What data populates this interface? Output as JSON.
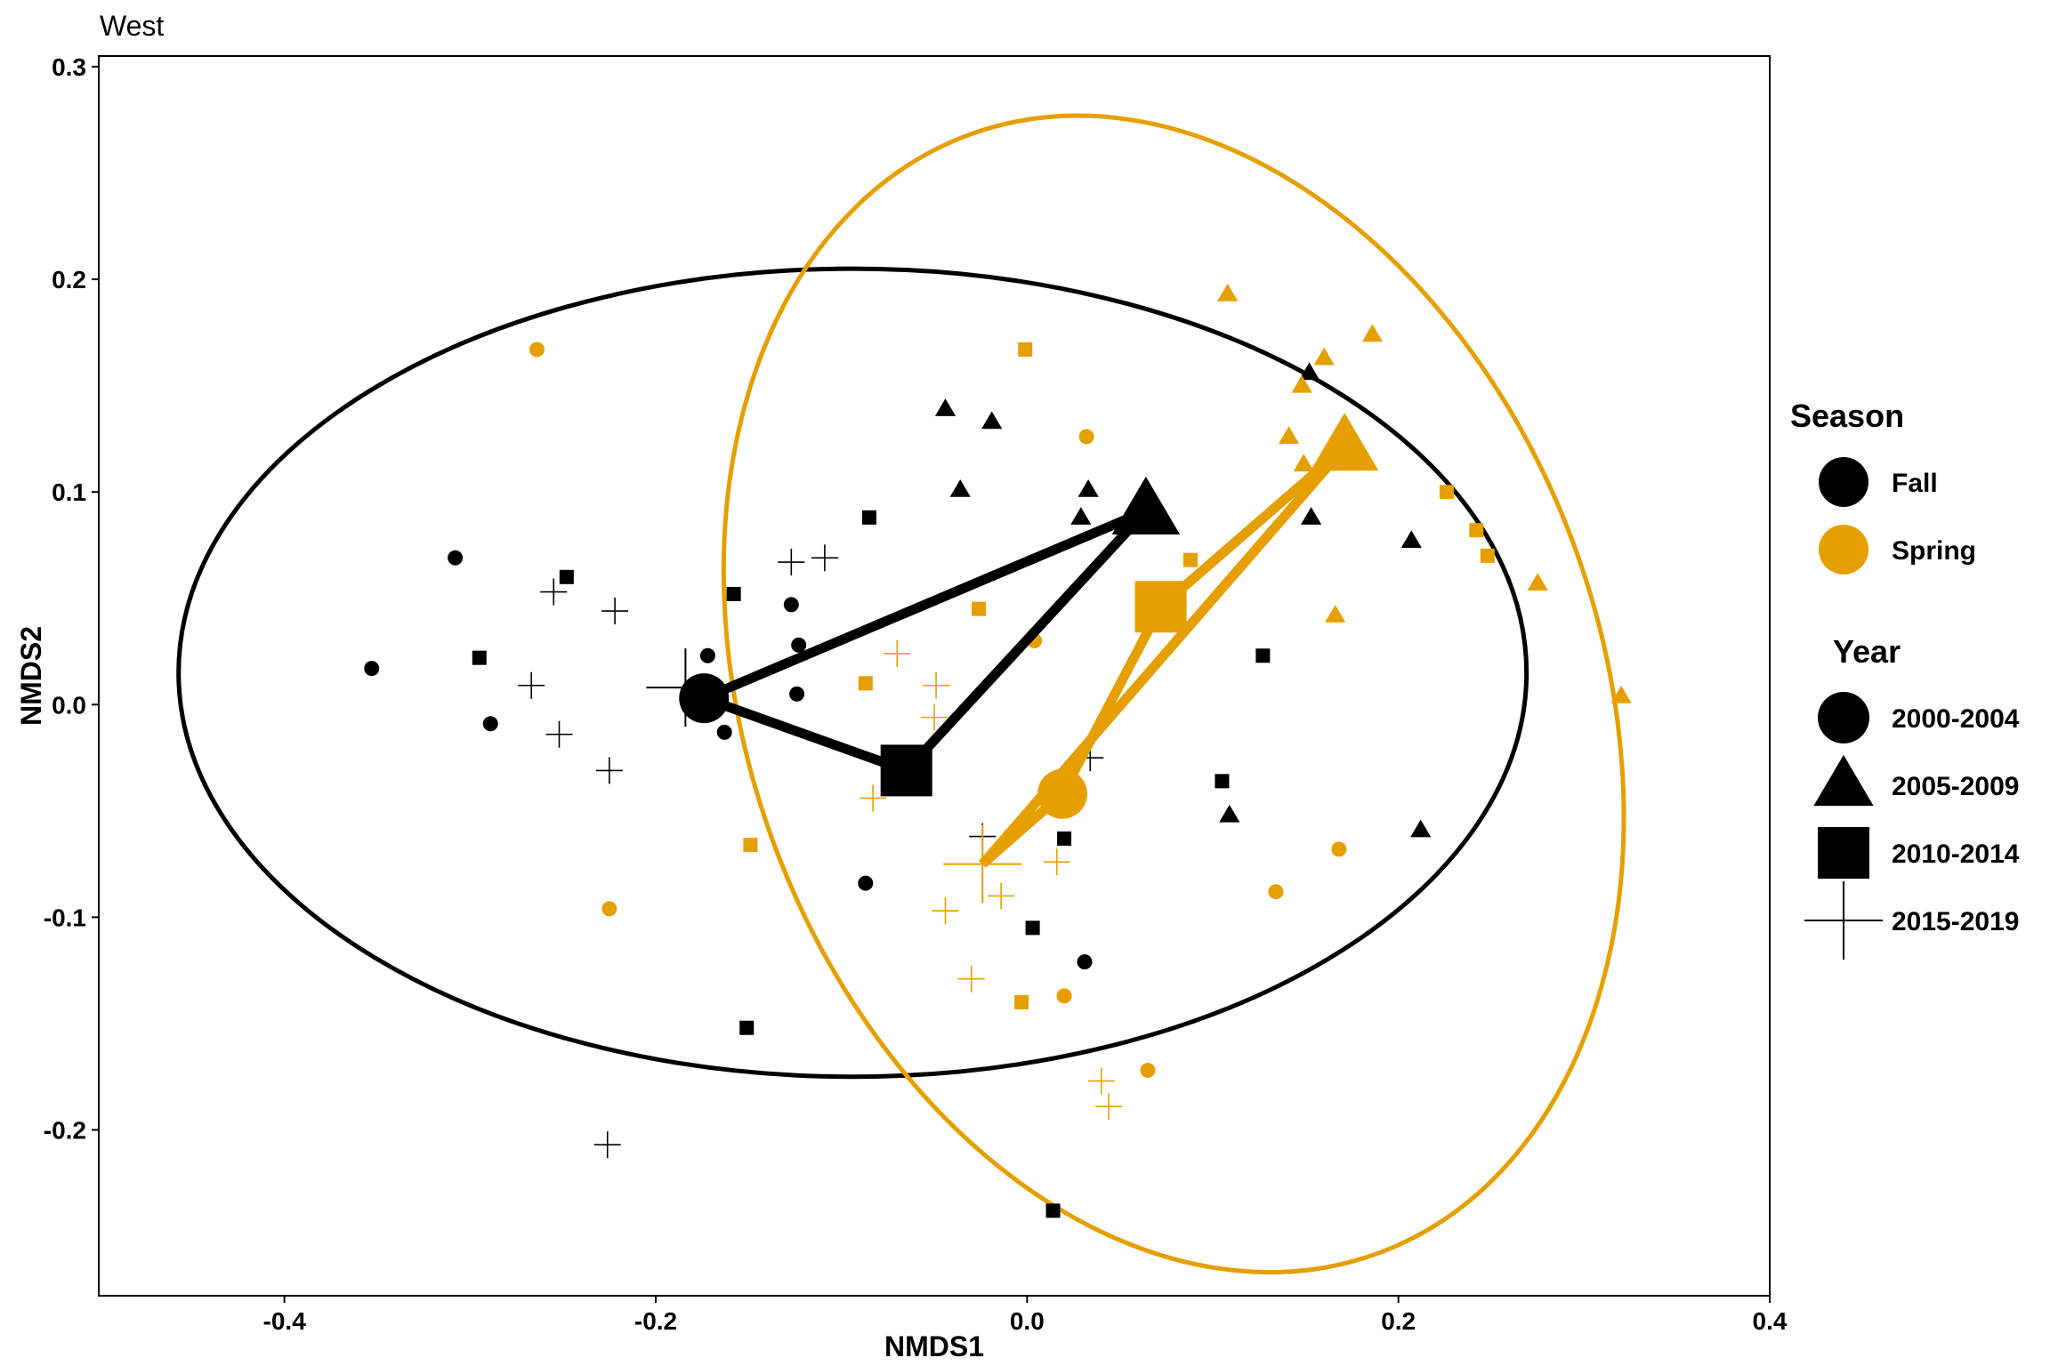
{
  "chart_data": {
    "type": "scatter",
    "title": "West",
    "xlabel": "NMDS1",
    "ylabel": "NMDS2",
    "xlim": [
      -0.5,
      0.4
    ],
    "ylim": [
      -0.278,
      0.305
    ],
    "xticks": [
      "-0.4",
      "-0.2",
      "0.0",
      "0.2",
      "0.4"
    ],
    "xtick_values": [
      -0.4,
      -0.2,
      0.0,
      0.2,
      0.4
    ],
    "yticks": [
      "-0.2",
      "-0.1",
      "0.0",
      "0.1",
      "0.2",
      "0.3"
    ],
    "ytick_values": [
      -0.2,
      -0.1,
      0.0,
      0.1,
      0.2,
      0.3
    ],
    "grid": false,
    "legend_placement": "right",
    "colors": {
      "Fall": "#000000",
      "Spring": "#E69F00"
    },
    "legend": {
      "season_title": "Season",
      "season_items": [
        "Fall",
        "Spring"
      ],
      "year_title": "Year",
      "year_items": [
        {
          "label": "2000-2004",
          "shape": "circle"
        },
        {
          "label": "2005-2009",
          "shape": "triangle"
        },
        {
          "label": "2010-2014",
          "shape": "square"
        },
        {
          "label": "2015-2019",
          "shape": "plus"
        }
      ]
    },
    "ellipses": [
      {
        "season": "Fall",
        "center": [
          -0.094,
          0.015
        ],
        "rx": 0.363,
        "ry": 0.19,
        "angle_deg": 0
      },
      {
        "season": "Spring",
        "center": [
          0.079,
          0.005
        ],
        "rx": 0.23,
        "ry": 0.28,
        "angle_deg": -20
      }
    ],
    "centroids": [
      {
        "season": "Fall",
        "year": "2000-2004",
        "x": -0.174,
        "y": 0.003
      },
      {
        "season": "Fall",
        "year": "2005-2009",
        "x": 0.064,
        "y": 0.091
      },
      {
        "season": "Fall",
        "year": "2010-2014",
        "x": -0.065,
        "y": -0.031
      },
      {
        "season": "Fall",
        "year": "2015-2019",
        "x": -0.184,
        "y": 0.008
      },
      {
        "season": "Spring",
        "year": "2000-2004",
        "x": 0.019,
        "y": -0.042
      },
      {
        "season": "Spring",
        "year": "2005-2009",
        "x": 0.171,
        "y": 0.121
      },
      {
        "season": "Spring",
        "year": "2010-2014",
        "x": 0.072,
        "y": 0.046
      },
      {
        "season": "Spring",
        "year": "2015-2019",
        "x": -0.024,
        "y": -0.075
      }
    ],
    "series": [
      {
        "season": "Fall",
        "year": "2000-2004",
        "x": [
          -0.353,
          -0.308,
          -0.289,
          -0.172,
          -0.163,
          -0.127,
          -0.123,
          -0.124,
          -0.087,
          0.031
        ],
        "y": [
          0.017,
          0.069,
          -0.009,
          0.023,
          -0.013,
          0.047,
          0.028,
          0.005,
          -0.084,
          -0.121
        ]
      },
      {
        "season": "Fall",
        "year": "2005-2009",
        "x": [
          -0.044,
          -0.036,
          -0.019,
          0.033,
          0.029,
          0.152,
          0.153,
          0.207,
          0.109,
          0.212
        ],
        "y": [
          0.139,
          0.101,
          0.133,
          0.101,
          0.088,
          0.156,
          0.088,
          0.077,
          -0.052,
          -0.059
        ]
      },
      {
        "season": "Fall",
        "year": "2010-2014",
        "x": [
          -0.248,
          -0.295,
          -0.158,
          -0.085,
          0.127,
          0.105,
          0.02,
          0.003,
          -0.151,
          0.014
        ],
        "y": [
          0.06,
          0.022,
          0.052,
          0.088,
          0.023,
          -0.036,
          -0.063,
          -0.105,
          -0.152,
          -0.238
        ]
      },
      {
        "season": "Fall",
        "year": "2015-2019",
        "x": [
          -0.255,
          -0.222,
          -0.267,
          -0.252,
          -0.225,
          -0.127,
          -0.109,
          -0.226,
          -0.024,
          0.034
        ],
        "y": [
          0.053,
          0.044,
          0.009,
          -0.014,
          -0.031,
          0.067,
          0.069,
          -0.207,
          -0.062,
          -0.025
        ]
      },
      {
        "season": "Spring",
        "year": "2000-2004",
        "x": [
          -0.264,
          -0.225,
          0.004,
          0.032,
          0.02,
          0.134,
          0.168,
          0.065
        ],
        "y": [
          0.167,
          -0.096,
          0.03,
          0.126,
          -0.137,
          -0.088,
          -0.068,
          -0.172
        ]
      },
      {
        "season": "Spring",
        "year": "2005-2009",
        "x": [
          0.108,
          0.148,
          0.16,
          0.186,
          0.141,
          0.149,
          0.166,
          0.275,
          0.32
        ],
        "y": [
          0.193,
          0.15,
          0.163,
          0.174,
          0.126,
          0.113,
          0.042,
          0.057,
          0.004
        ]
      },
      {
        "season": "Spring",
        "year": "2010-2014",
        "x": [
          -0.001,
          0.088,
          -0.026,
          -0.087,
          -0.149,
          -0.003,
          0.226,
          0.242,
          0.248
        ],
        "y": [
          0.167,
          0.068,
          0.045,
          0.01,
          -0.066,
          -0.14,
          0.1,
          0.082,
          0.07
        ]
      },
      {
        "season": "Spring",
        "year": "2015-2019",
        "x": [
          -0.07,
          -0.049,
          -0.05,
          -0.083,
          -0.044,
          -0.014,
          0.016,
          -0.03,
          0.04,
          0.044
        ],
        "y": [
          0.024,
          0.009,
          -0.006,
          -0.044,
          -0.097,
          -0.09,
          -0.074,
          -0.129,
          -0.177,
          -0.189
        ]
      }
    ]
  }
}
